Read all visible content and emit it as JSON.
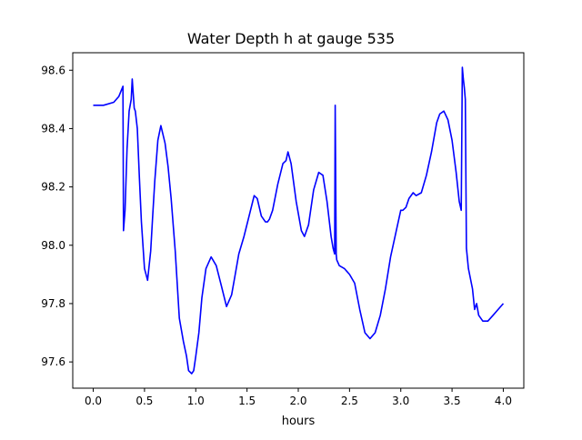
{
  "chart_data": {
    "type": "line",
    "title": "Water Depth h at gauge 535",
    "xlabel": "hours",
    "ylabel": "",
    "xlim": [
      -0.2,
      4.2
    ],
    "ylim": [
      97.51,
      98.66
    ],
    "xticks": [
      0.0,
      0.5,
      1.0,
      1.5,
      2.0,
      2.5,
      3.0,
      3.5,
      4.0
    ],
    "xtick_labels": [
      "0.0",
      "0.5",
      "1.0",
      "1.5",
      "2.0",
      "2.5",
      "3.0",
      "3.5",
      "4.0"
    ],
    "yticks": [
      97.6,
      97.8,
      98.0,
      98.2,
      98.4,
      98.6
    ],
    "ytick_labels": [
      "97.6",
      "97.8",
      "98.0",
      "98.2",
      "98.4",
      "98.6"
    ],
    "grid": false,
    "legend": "none",
    "series": [
      {
        "color": "#0000ff",
        "x": [
          0.0,
          0.1,
          0.2,
          0.25,
          0.29,
          0.295,
          0.31,
          0.33,
          0.35,
          0.37,
          0.38,
          0.4,
          0.41,
          0.43,
          0.45,
          0.47,
          0.5,
          0.53,
          0.56,
          0.58,
          0.6,
          0.63,
          0.66,
          0.7,
          0.73,
          0.76,
          0.8,
          0.84,
          0.88,
          0.91,
          0.93,
          0.96,
          0.98,
          1.0,
          1.03,
          1.06,
          1.1,
          1.15,
          1.2,
          1.25,
          1.3,
          1.35,
          1.38,
          1.42,
          1.47,
          1.52,
          1.57,
          1.6,
          1.64,
          1.68,
          1.7,
          1.72,
          1.75,
          1.8,
          1.85,
          1.88,
          1.9,
          1.93,
          1.98,
          2.03,
          2.06,
          2.1,
          2.15,
          2.2,
          2.24,
          2.28,
          2.32,
          2.34,
          2.355,
          2.36,
          2.37,
          2.375,
          2.4,
          2.45,
          2.5,
          2.55,
          2.6,
          2.65,
          2.7,
          2.75,
          2.8,
          2.85,
          2.9,
          2.95,
          3.0,
          3.02,
          3.05,
          3.08,
          3.12,
          3.15,
          3.2,
          3.25,
          3.3,
          3.35,
          3.38,
          3.42,
          3.46,
          3.5,
          3.54,
          3.57,
          3.59,
          3.6,
          3.61,
          3.62,
          3.63,
          3.64,
          3.66,
          3.7,
          3.72,
          3.74,
          3.76,
          3.8,
          3.85,
          3.9,
          3.95,
          4.0
        ],
        "y": [
          98.48,
          98.48,
          98.49,
          98.51,
          98.545,
          98.05,
          98.12,
          98.33,
          98.46,
          98.5,
          98.57,
          98.47,
          98.46,
          98.4,
          98.23,
          98.08,
          97.92,
          97.88,
          97.98,
          98.1,
          98.22,
          98.36,
          98.41,
          98.35,
          98.27,
          98.16,
          97.98,
          97.75,
          97.67,
          97.62,
          97.57,
          97.56,
          97.57,
          97.62,
          97.7,
          97.82,
          97.92,
          97.96,
          97.93,
          97.86,
          97.79,
          97.83,
          97.89,
          97.97,
          98.03,
          98.1,
          98.17,
          98.16,
          98.1,
          98.08,
          98.08,
          98.09,
          98.12,
          98.21,
          98.28,
          98.29,
          98.32,
          98.28,
          98.15,
          98.05,
          98.03,
          98.07,
          98.19,
          98.25,
          98.24,
          98.15,
          98.03,
          97.99,
          97.97,
          98.48,
          97.97,
          97.95,
          97.93,
          97.92,
          97.9,
          97.87,
          97.78,
          97.7,
          97.68,
          97.7,
          97.76,
          97.85,
          97.96,
          98.04,
          98.12,
          98.12,
          98.13,
          98.16,
          98.18,
          98.17,
          98.18,
          98.24,
          98.32,
          98.42,
          98.45,
          98.46,
          98.43,
          98.36,
          98.25,
          98.15,
          98.12,
          98.61,
          98.57,
          98.54,
          98.5,
          97.99,
          97.92,
          97.85,
          97.78,
          97.8,
          97.76,
          97.74,
          97.74,
          97.76,
          97.78,
          97.8
        ]
      }
    ]
  }
}
